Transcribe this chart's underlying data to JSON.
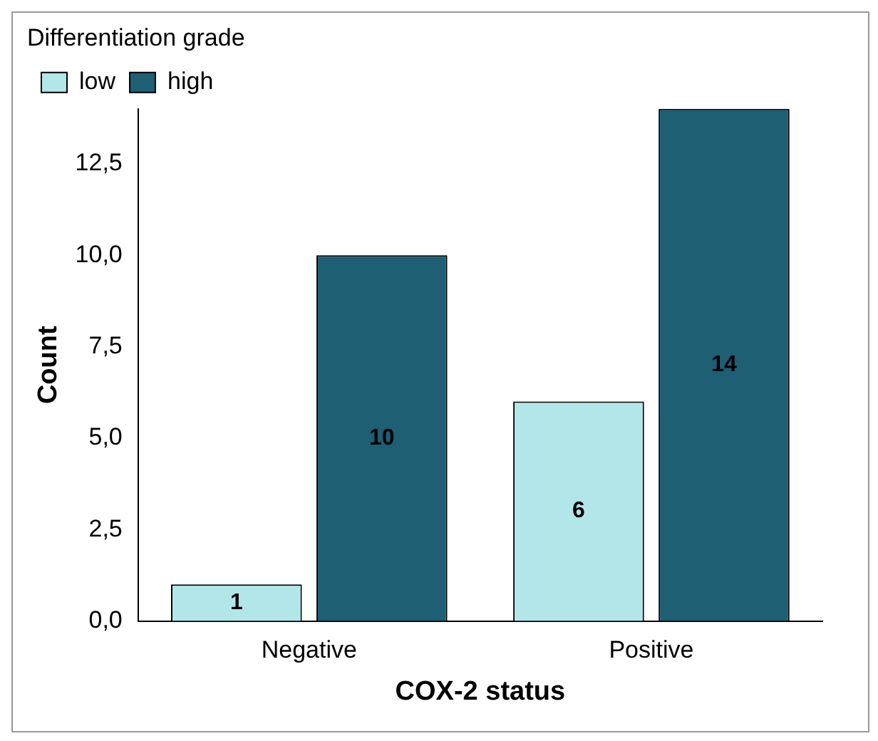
{
  "chart_data": {
    "type": "bar",
    "xlabel": "COX-2 status",
    "ylabel": "Count",
    "legend_title": "Differentiation grade",
    "categories": [
      "Negative",
      "Positive"
    ],
    "series": [
      {
        "name": "low",
        "color": "#b3e6e8",
        "values": [
          1,
          6
        ]
      },
      {
        "name": "high",
        "color": "#1e5f74",
        "values": [
          10,
          14
        ]
      }
    ],
    "ylim": [
      0,
      14
    ],
    "yticks": [
      {
        "value": 0,
        "label": "0,0"
      },
      {
        "value": 2.5,
        "label": "2,5"
      },
      {
        "value": 5,
        "label": "5,0"
      },
      {
        "value": 7.5,
        "label": "7,5"
      },
      {
        "value": 10,
        "label": "10,0"
      },
      {
        "value": 12.5,
        "label": "12,5"
      }
    ],
    "data_labels": true,
    "legend": "top left",
    "grid": false
  }
}
